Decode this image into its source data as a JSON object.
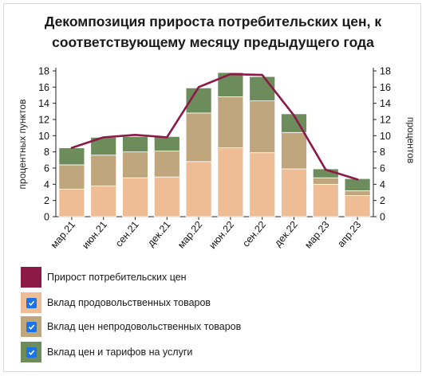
{
  "title_line1": "Декомпозиция прироста потребительских цен, к",
  "title_line2": "соответствующему месяцу предыдущего года",
  "legend": [
    {
      "label": "Прирост потребительских цен",
      "color": "#8b1a46",
      "checkbox": false
    },
    {
      "label": "Вклад продовольственных товаров",
      "color": "#efbd95",
      "checkbox": true
    },
    {
      "label": "Вклад цен непродовольственных товаров",
      "color": "#bfa67c",
      "checkbox": true
    },
    {
      "label": "Вклад цен и тарифов на услуги",
      "color": "#6d8c5c",
      "checkbox": true
    }
  ],
  "chart_data": {
    "type": "bar",
    "stacked": true,
    "xlabel": "",
    "ylabel_left": "процентных пунктов",
    "ylabel_right": "процентов",
    "ylim": [
      0,
      18
    ],
    "yticks": [
      0,
      2,
      4,
      6,
      8,
      10,
      12,
      14,
      16,
      18
    ],
    "categories": [
      "мар.21",
      "июн.21",
      "сен.21",
      "дек.21",
      "мар.22",
      "июн.22",
      "сен.22",
      "дек.22",
      "мар.23",
      "апр.23"
    ],
    "tick_labels": [
      "мар.21",
      "июн.21",
      "сен.21",
      "дек.21",
      "мар.22",
      "июн.22",
      "сен.22",
      "дек.22",
      "мар.23",
      "апр.23"
    ],
    "series": [
      {
        "name": "Вклад продовольственных товаров",
        "color": "#efbd95",
        "values": [
          3.4,
          3.8,
          4.8,
          4.9,
          6.8,
          8.5,
          7.9,
          5.9,
          4.0,
          2.6
        ]
      },
      {
        "name": "Вклад цен непродовольственных товаров",
        "color": "#bfa67c",
        "values": [
          3.0,
          3.8,
          3.2,
          3.2,
          6.0,
          6.3,
          6.4,
          4.5,
          0.8,
          0.6
        ]
      },
      {
        "name": "Вклад цен и тарифов на услуги",
        "color": "#6d8c5c",
        "values": [
          2.1,
          2.2,
          1.9,
          1.8,
          3.1,
          3.0,
          3.0,
          2.3,
          1.1,
          1.5
        ]
      }
    ],
    "line": {
      "name": "Прирост потребительских цен",
      "color": "#8b1a46",
      "values": [
        8.5,
        9.8,
        10.1,
        9.8,
        16.0,
        17.6,
        17.5,
        12.5,
        5.8,
        4.6
      ]
    },
    "grid": false,
    "legend_position": "bottom"
  }
}
